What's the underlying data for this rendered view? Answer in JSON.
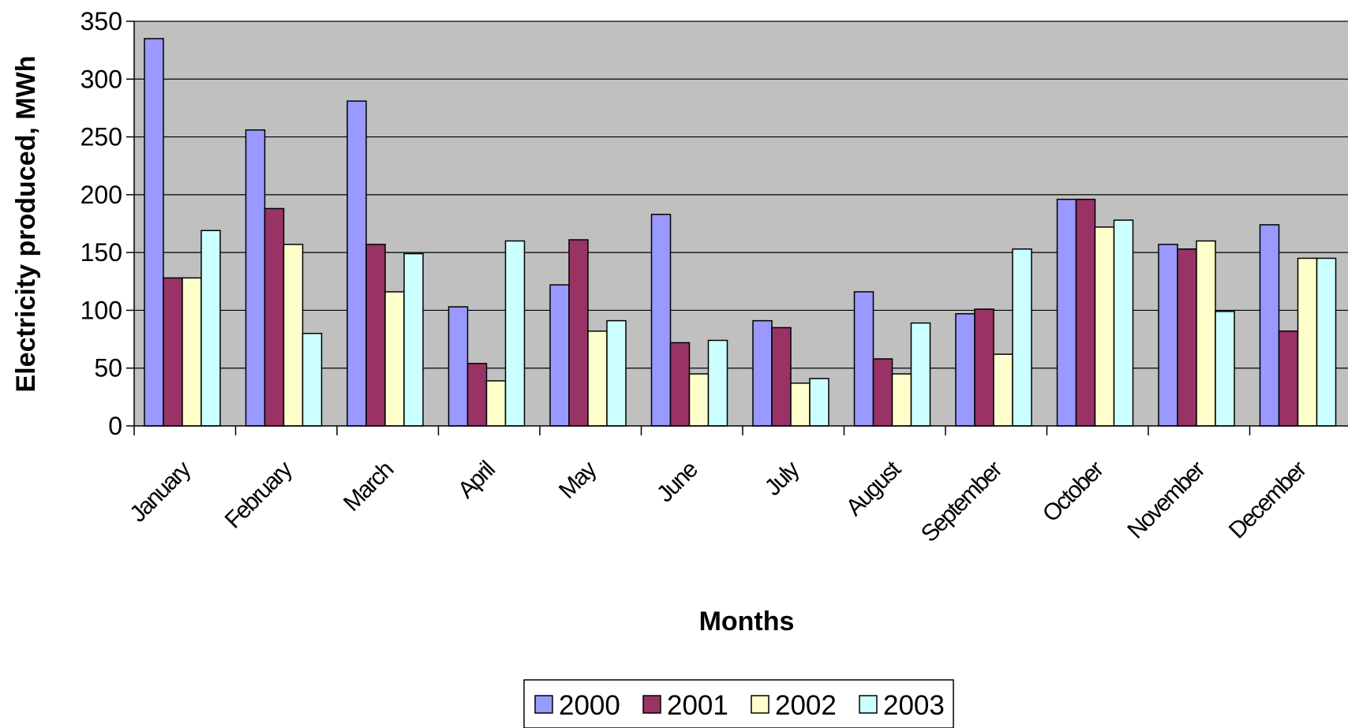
{
  "chart_data": {
    "type": "bar",
    "title": "",
    "xlabel": "Months",
    "ylabel": "Electricity produced, MWh",
    "ylim": [
      0,
      350
    ],
    "yticks": [
      0,
      50,
      100,
      150,
      200,
      250,
      300,
      350
    ],
    "grid": true,
    "legend_position": "bottom-center",
    "plot_background": "#c0c0c0",
    "categories": [
      "January",
      "February",
      "March",
      "April",
      "May",
      "June",
      "July",
      "August",
      "September",
      "October",
      "November",
      "December"
    ],
    "series": [
      {
        "name": "2000",
        "color": "#9999ff",
        "values": [
          335,
          256,
          281,
          103,
          122,
          183,
          91,
          116,
          97,
          196,
          157,
          174
        ]
      },
      {
        "name": "2001",
        "color": "#993366",
        "values": [
          128,
          188,
          157,
          54,
          161,
          72,
          85,
          58,
          101,
          196,
          153,
          82
        ]
      },
      {
        "name": "2002",
        "color": "#ffffcc",
        "values": [
          128,
          157,
          116,
          39,
          82,
          45,
          37,
          45,
          62,
          172,
          160,
          145
        ]
      },
      {
        "name": "2003",
        "color": "#ccffff",
        "values": [
          169,
          80,
          149,
          160,
          91,
          74,
          41,
          89,
          153,
          178,
          99,
          145
        ]
      }
    ]
  }
}
